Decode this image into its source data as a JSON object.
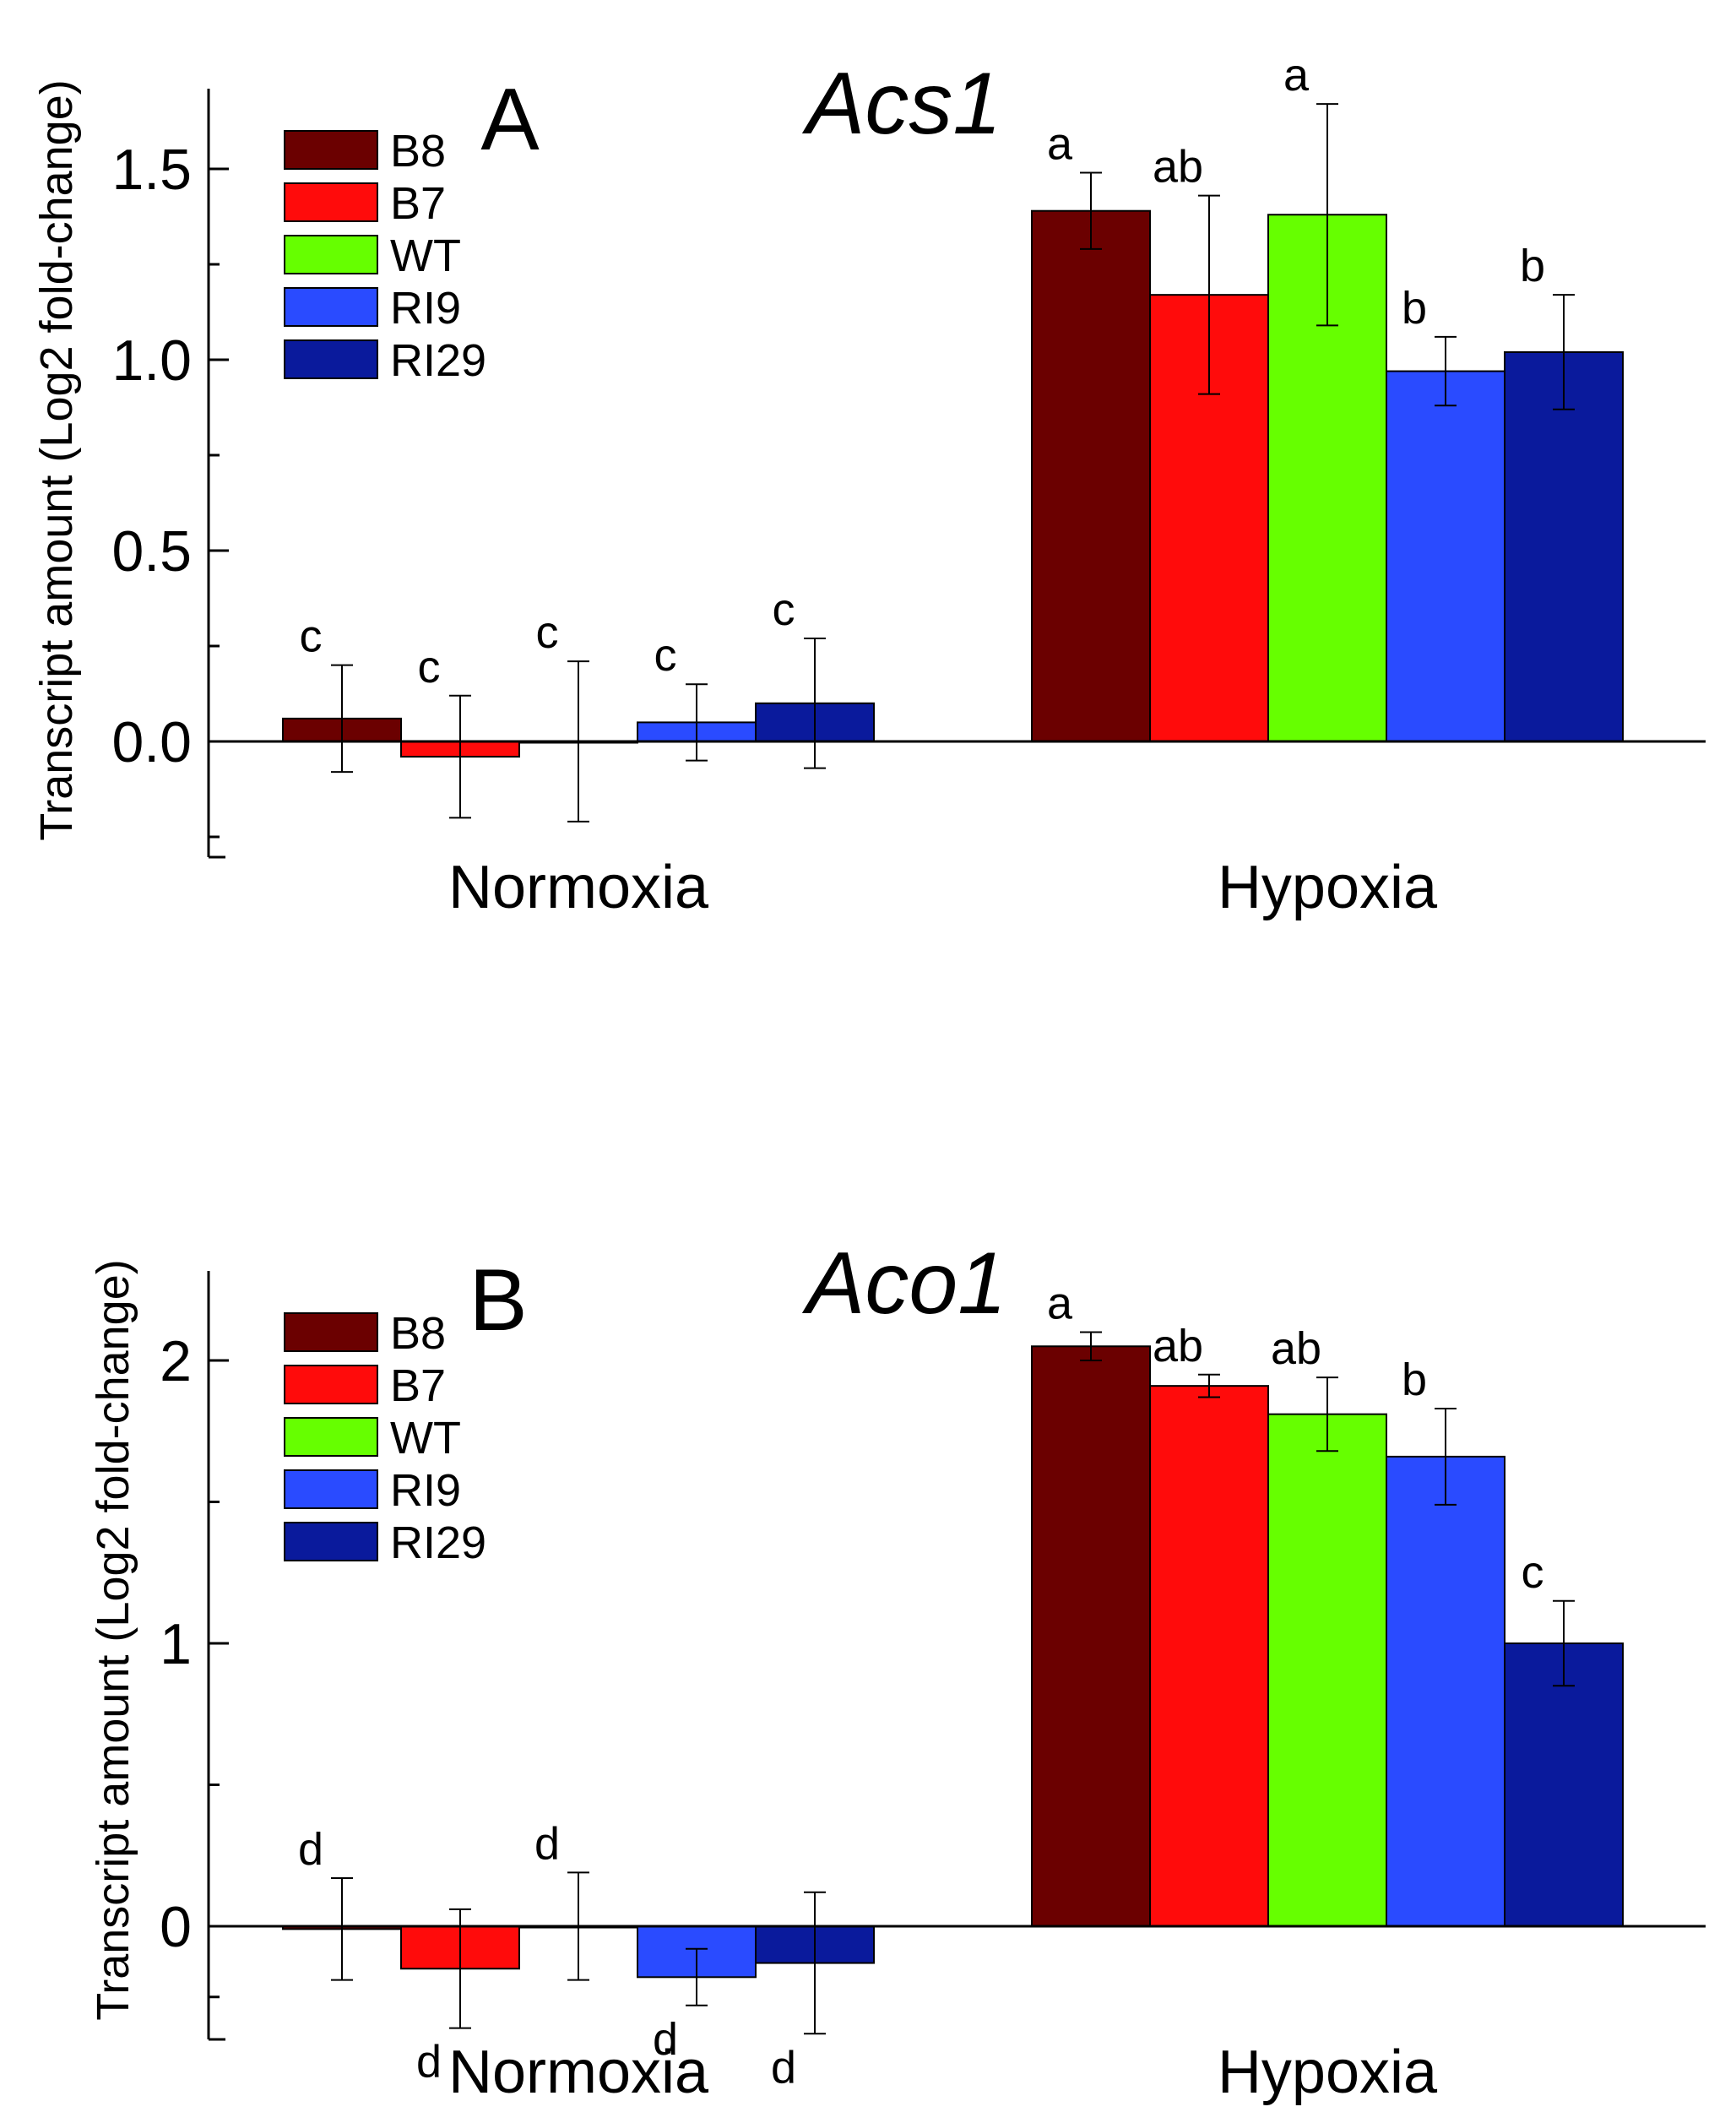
{
  "chart_data": [
    {
      "type": "bar",
      "panel": "A",
      "title": "Acs1",
      "ylabel": "Transcript amount (Log2 fold-change)",
      "categories": [
        "Normoxia",
        "Hypoxia"
      ],
      "ylim": [
        -0.3,
        1.7
      ],
      "yticks": [
        0.0,
        0.5,
        1.0,
        1.5
      ],
      "ytick_labels": [
        "0.0",
        "0.5",
        "1.0",
        "1.5"
      ],
      "legend_position": "top-left",
      "series": [
        {
          "name": "B8",
          "color": "#6b0000",
          "values": [
            0.06,
            1.39
          ],
          "errors": [
            0.14,
            0.1
          ],
          "letters": [
            "c",
            "a"
          ]
        },
        {
          "name": "B7",
          "color": "#ff0b0b",
          "values": [
            -0.04,
            1.17
          ],
          "errors": [
            0.16,
            0.26
          ],
          "letters": [
            "c",
            "ab"
          ]
        },
        {
          "name": "WT",
          "color": "#66ff00",
          "values": [
            0.0,
            1.38
          ],
          "errors": [
            0.21,
            0.29
          ],
          "letters": [
            "c",
            "a"
          ]
        },
        {
          "name": "RI9",
          "color": "#2a4bff",
          "values": [
            0.05,
            0.97
          ],
          "errors": [
            0.1,
            0.09
          ],
          "letters": [
            "c",
            "b"
          ]
        },
        {
          "name": "RI29",
          "color": "#0a1a9c",
          "values": [
            0.1,
            1.02
          ],
          "errors": [
            0.17,
            0.15
          ],
          "letters": [
            "c",
            "b"
          ]
        }
      ]
    },
    {
      "type": "bar",
      "panel": "B",
      "title": "Aco1",
      "ylabel": "Transcript amount (Log2 fold-change)",
      "categories": [
        "Normoxia",
        "Hypoxia"
      ],
      "ylim": [
        -0.4,
        2.3
      ],
      "yticks": [
        0,
        1,
        2
      ],
      "ytick_labels": [
        "0",
        "1",
        "2"
      ],
      "legend_position": "top-left",
      "series": [
        {
          "name": "B8",
          "color": "#6b0000",
          "values": [
            -0.01,
            2.05
          ],
          "errors": [
            0.18,
            0.05
          ],
          "letters": [
            "d",
            "a"
          ]
        },
        {
          "name": "B7",
          "color": "#ff0b0b",
          "values": [
            -0.15,
            1.91
          ],
          "errors": [
            0.21,
            0.04
          ],
          "letters": [
            "d",
            "ab"
          ]
        },
        {
          "name": "WT",
          "color": "#66ff00",
          "values": [
            0.0,
            1.81
          ],
          "errors": [
            0.19,
            0.13
          ],
          "letters": [
            "d",
            "ab"
          ]
        },
        {
          "name": "RI9",
          "color": "#2a4bff",
          "values": [
            -0.18,
            1.66
          ],
          "errors": [
            0.1,
            0.17
          ],
          "letters": [
            "d",
            "b"
          ]
        },
        {
          "name": "RI29",
          "color": "#0a1a9c",
          "values": [
            -0.13,
            1.0
          ],
          "errors": [
            0.25,
            0.15
          ],
          "letters": [
            "d",
            "c"
          ]
        }
      ]
    }
  ]
}
